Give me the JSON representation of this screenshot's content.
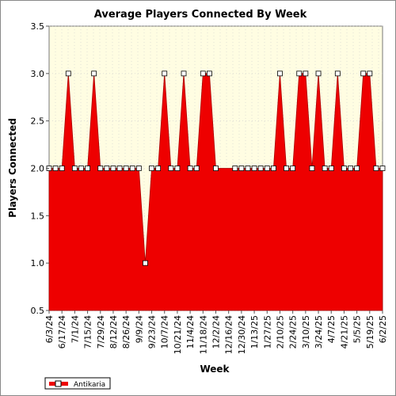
{
  "chart_data": {
    "type": "area",
    "title": "Average Players Connected By Week",
    "xlabel": "Week",
    "ylabel": "Players Connected",
    "ylim": [
      0.5,
      3.5
    ],
    "yticks": [
      "0.5",
      "1.0",
      "1.5",
      "2.0",
      "2.5",
      "3.0",
      "3.5"
    ],
    "grid": true,
    "legend_position": "bottom-left",
    "plot_background": "#fffde2",
    "series_color": "#ee0000",
    "x_tick_labels": [
      "6/3/24",
      "6/17/24",
      "7/1/24",
      "7/15/24",
      "7/29/24",
      "8/12/24",
      "8/26/24",
      "9/9/24",
      "9/23/24",
      "10/7/24",
      "10/21/24",
      "11/4/24",
      "11/18/24",
      "12/2/24",
      "12/16/24",
      "12/30/24",
      "1/13/25",
      "1/27/25",
      "2/10/25",
      "2/24/25",
      "3/10/25",
      "3/24/25",
      "4/7/25",
      "4/21/25",
      "5/5/25",
      "5/19/25",
      "6/2/25"
    ],
    "series": [
      {
        "name": "Antikaria",
        "values": [
          2,
          2,
          2,
          3,
          2,
          2,
          2,
          3,
          2,
          2,
          2,
          2,
          2,
          2,
          2,
          1,
          2,
          2,
          3,
          2,
          2,
          3,
          2,
          2,
          3,
          3,
          2,
          2,
          2,
          2,
          2,
          2,
          2,
          2,
          2,
          2,
          3,
          2,
          2,
          3,
          3,
          2,
          3,
          2,
          2,
          3,
          2,
          2,
          2,
          3,
          3,
          2,
          2
        ],
        "marker_indices": [
          0,
          1,
          2,
          3,
          4,
          5,
          6,
          7,
          8,
          9,
          10,
          11,
          12,
          13,
          14,
          15,
          16,
          17,
          18,
          19,
          20,
          21,
          22,
          23,
          24,
          25,
          26,
          29,
          30,
          31,
          32,
          33,
          34,
          35,
          36,
          37,
          38,
          39,
          40,
          41,
          42,
          43,
          44,
          45,
          46,
          47,
          48,
          49,
          50,
          51,
          52
        ]
      }
    ]
  }
}
